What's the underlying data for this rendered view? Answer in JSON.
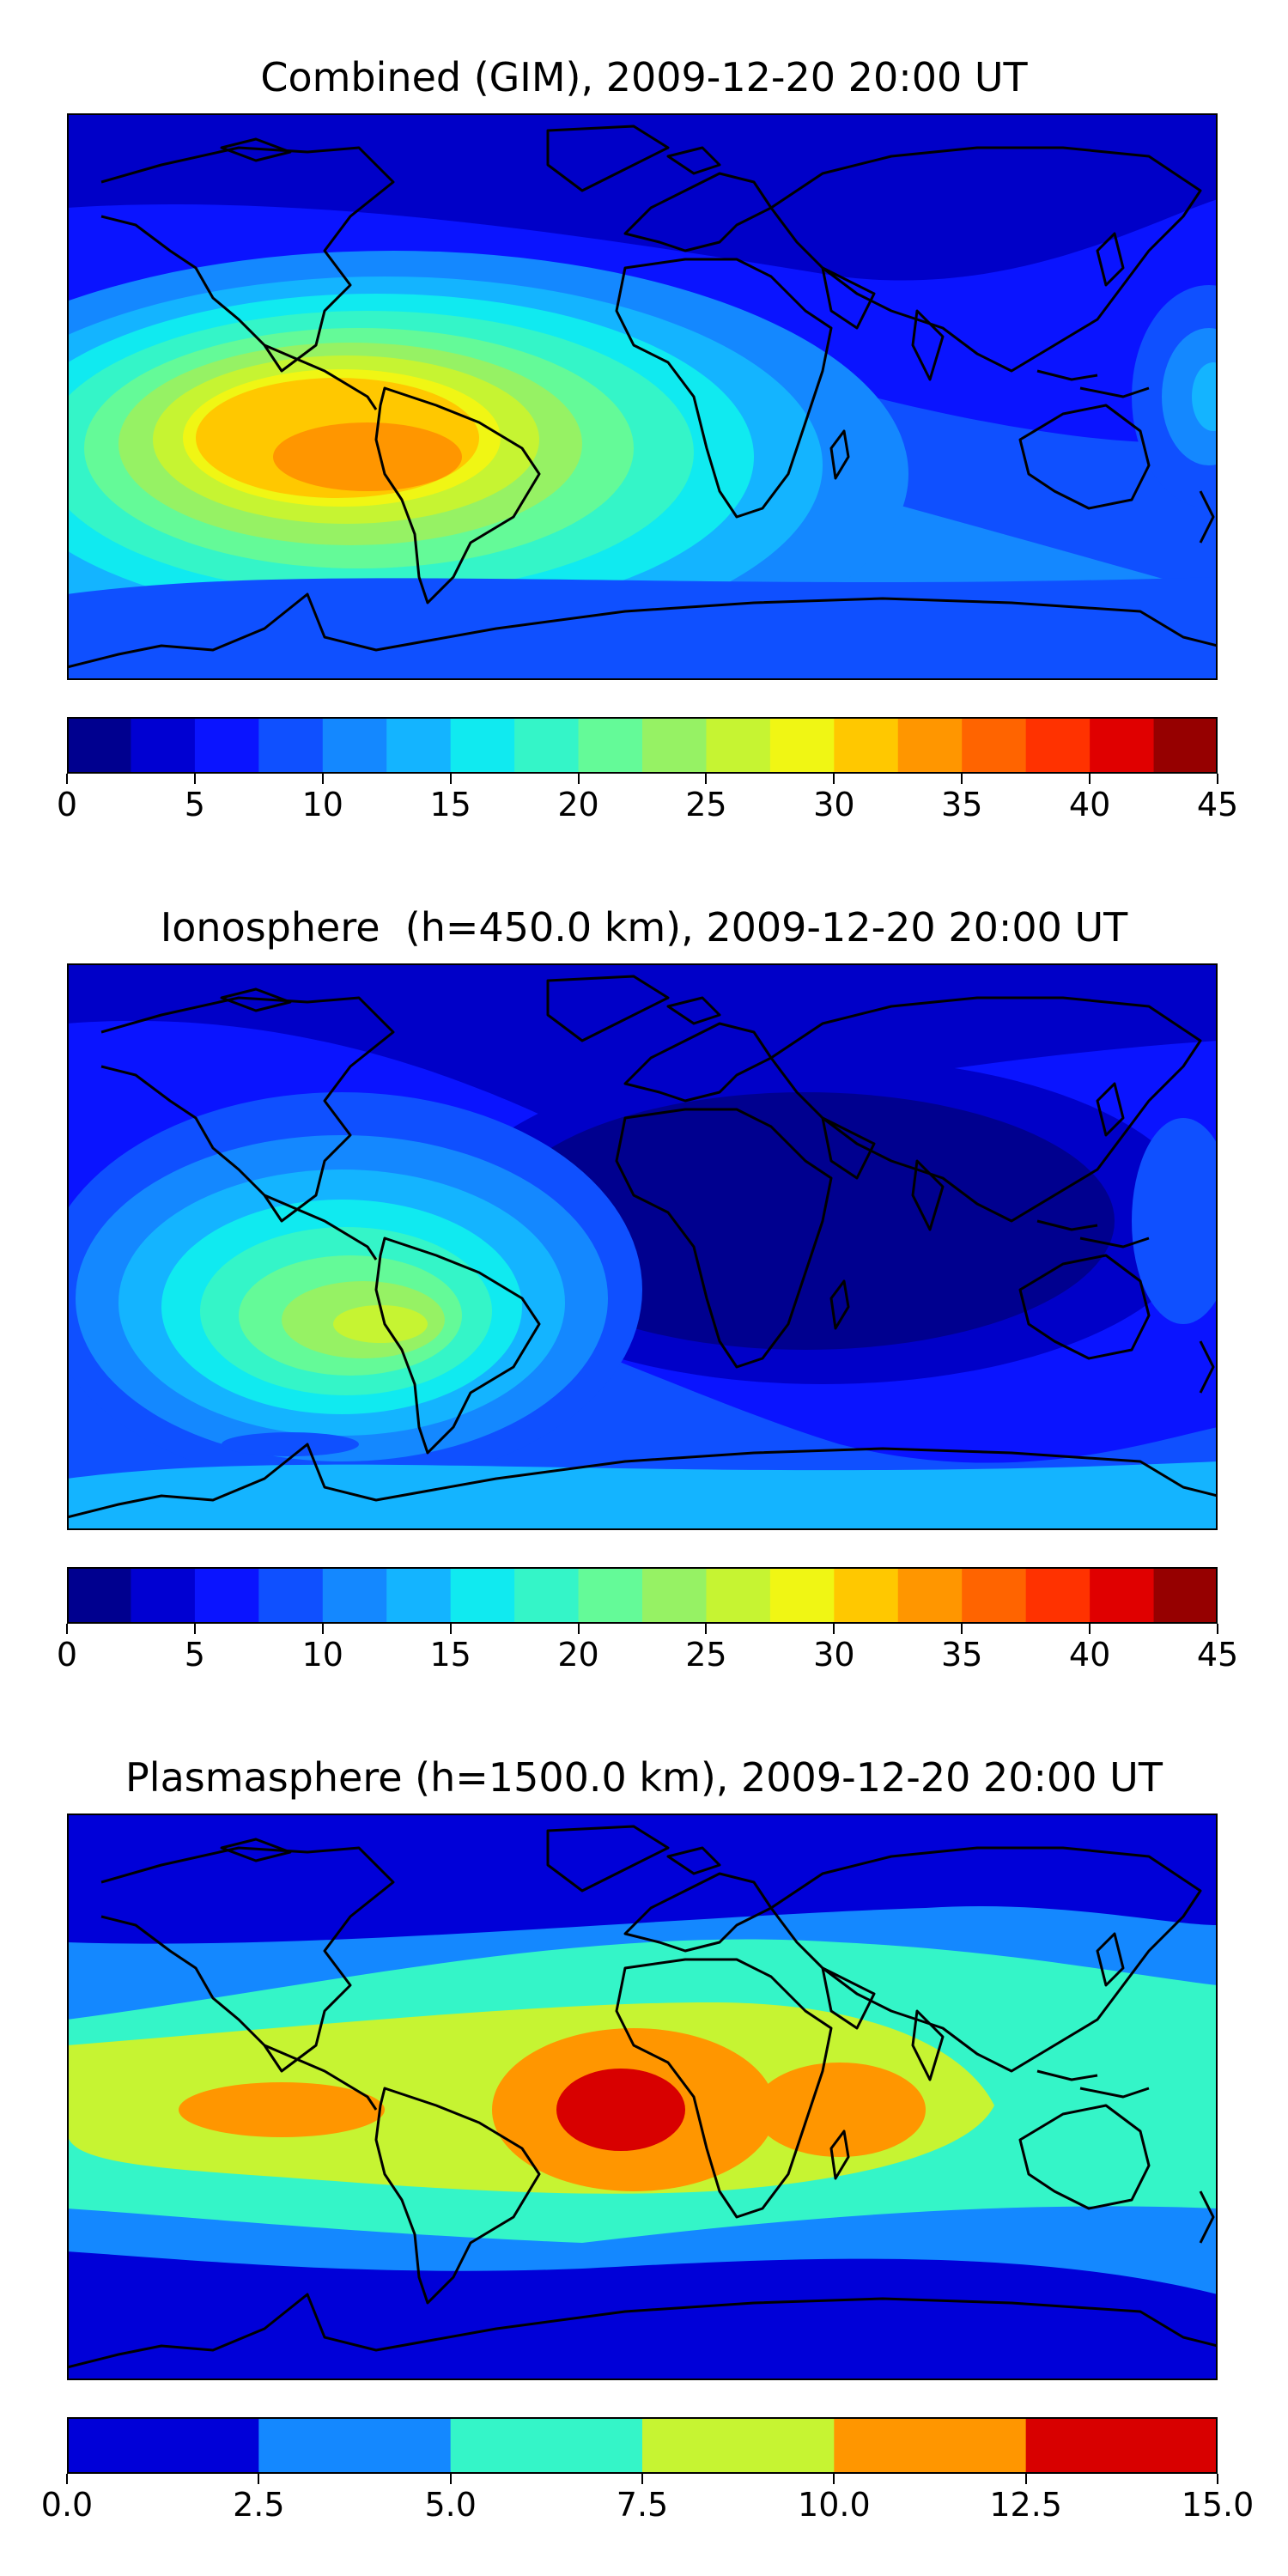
{
  "panels": [
    {
      "title": "Combined (GIM), 2009-12-20 20:00 UT",
      "colorbar": {
        "colors": [
          "#00008f",
          "#0000d2",
          "#0a14ff",
          "#0f50ff",
          "#1488ff",
          "#14b4ff",
          "#10eaf0",
          "#34f5c8",
          "#64fa98",
          "#96f264",
          "#c6f432",
          "#f0f614",
          "#ffc800",
          "#ff9600",
          "#ff6400",
          "#ff3200",
          "#e00000",
          "#960000"
        ],
        "tick_labels": [
          "0",
          "5",
          "10",
          "15",
          "20",
          "25",
          "30",
          "35",
          "40",
          "45"
        ]
      }
    },
    {
      "title": "Ionosphere  (h=450.0 km), 2009-12-20 20:00 UT",
      "colorbar": {
        "colors": [
          "#00008f",
          "#0000d2",
          "#0a14ff",
          "#0f50ff",
          "#1488ff",
          "#14b4ff",
          "#10eaf0",
          "#34f5c8",
          "#64fa98",
          "#96f264",
          "#c6f432",
          "#f0f614",
          "#ffc800",
          "#ff9600",
          "#ff6400",
          "#ff3200",
          "#e00000",
          "#960000"
        ],
        "tick_labels": [
          "0",
          "5",
          "10",
          "15",
          "20",
          "25",
          "30",
          "35",
          "40",
          "45"
        ]
      }
    },
    {
      "title": "Plasmasphere (h=1500.0 km), 2009-12-20 20:00 UT",
      "colorbar": {
        "colors": [
          "#0000d8",
          "#1488ff",
          "#34f5c8",
          "#c6f432",
          "#ff9600",
          "#d80000"
        ],
        "tick_labels": [
          "0.0",
          "2.5",
          "5.0",
          "7.5",
          "10.0",
          "12.5",
          "15.0"
        ]
      }
    }
  ]
}
